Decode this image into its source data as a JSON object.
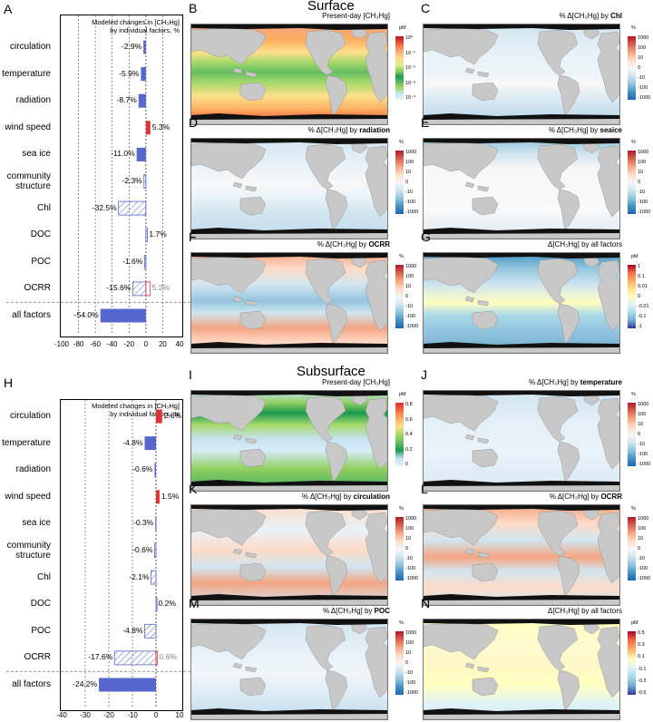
{
  "sections": {
    "surface": "Surface",
    "subsurface": "Subsurface"
  },
  "bar_panels": [
    {
      "letter": "A",
      "title_line1": "Modeled changes in [CH₃Hg]",
      "title_line2": "by individual factors, %",
      "xlim": [
        -100,
        40
      ],
      "xticks": [
        "-100",
        "-80",
        "-60",
        "-40",
        "-20",
        "0",
        "20",
        "40"
      ],
      "xtick_values": [
        -100,
        -80,
        -60,
        -40,
        -20,
        0,
        20,
        40
      ],
      "factors": [
        {
          "label1": "circulation",
          "label2": "",
          "value": -2.9,
          "value_label": "-2.9%",
          "style": "solid"
        },
        {
          "label1": "temperature",
          "label2": "",
          "value": -5.9,
          "value_label": "-5.9%",
          "style": "solid"
        },
        {
          "label1": "radiation",
          "label2": "",
          "value": -8.7,
          "value_label": "-8.7%",
          "style": "solid"
        },
        {
          "label1": "wind speed",
          "label2": "",
          "value": 5.3,
          "value_label": "5.3%",
          "style": "solid"
        },
        {
          "label1": "sea ice",
          "label2": "",
          "value": -11.0,
          "value_label": "-11.0%",
          "style": "solid"
        },
        {
          "label1": "community",
          "label2": "structure",
          "value": -2.3,
          "value_label": "-2.3%",
          "style": "hatched"
        },
        {
          "label1": "Chl",
          "label2": "",
          "value": -32.5,
          "value_label": "-32.5%",
          "style": "hatched"
        },
        {
          "label1": "DOC",
          "label2": "",
          "value": 1.7,
          "value_label": "1.7%",
          "style": "hatched"
        },
        {
          "label1": "POC",
          "label2": "",
          "value": -1.6,
          "value_label": "-1.6%",
          "style": "hatched"
        },
        {
          "label1": "OCRR",
          "label2": "",
          "value": -15.6,
          "value_label": "-15.6%",
          "style": "hatched",
          "value2": 5.2,
          "value2_label": "5.2%"
        },
        {
          "label1": "all factors",
          "label2": "",
          "value": -54.0,
          "value_label": "-54.0%",
          "style": "solid"
        }
      ]
    },
    {
      "letter": "H",
      "title_line1": "Modeled changes in [CH₃Hg]",
      "title_line2": "by individual factors, %",
      "xlim": [
        -40,
        10
      ],
      "xticks": [
        "-40",
        "-30",
        "-20",
        "-10",
        "0",
        "10"
      ],
      "xtick_values": [
        -40,
        -30,
        -20,
        -10,
        0,
        10
      ],
      "factors": [
        {
          "label1": "circulation",
          "label2": "",
          "value": 2.6,
          "value_label": "2.6%",
          "style": "solid"
        },
        {
          "label1": "temperature",
          "label2": "",
          "value": -4.8,
          "value_label": "-4.8%",
          "style": "solid"
        },
        {
          "label1": "radiation",
          "label2": "",
          "value": -0.6,
          "value_label": "-0.6%",
          "style": "solid"
        },
        {
          "label1": "wind speed",
          "label2": "",
          "value": 1.5,
          "value_label": "1.5%",
          "style": "solid"
        },
        {
          "label1": "sea ice",
          "label2": "",
          "value": -0.3,
          "value_label": "-0.3%",
          "style": "solid"
        },
        {
          "label1": "community",
          "label2": "structure",
          "value": -0.6,
          "value_label": "-0.6%",
          "style": "hatched"
        },
        {
          "label1": "Chl",
          "label2": "",
          "value": -2.1,
          "value_label": "-2.1%",
          "style": "hatched"
        },
        {
          "label1": "DOC",
          "label2": "",
          "value": 0.2,
          "value_label": "0.2%",
          "style": "hatched"
        },
        {
          "label1": "POC",
          "label2": "",
          "value": -4.8,
          "value_label": "-4.8%",
          "style": "hatched"
        },
        {
          "label1": "OCRR",
          "label2": "",
          "value": -17.6,
          "value_label": "-17.6%",
          "style": "hatched",
          "value2": 0.6,
          "value2_label": "0.6%"
        },
        {
          "label1": "all factors",
          "label2": "",
          "value": -24.2,
          "value_label": "-24.2%",
          "style": "solid"
        }
      ]
    }
  ],
  "map_panels": [
    {
      "id": "B",
      "letter": "B",
      "title_pre": "Present-day [CH₃Hg]",
      "title_bold": "",
      "unit": "pM",
      "scale": "pm-log",
      "ticks": [
        "10⁰",
        "10⁻¹",
        "10⁻²",
        "10⁻³",
        "10⁻⁴"
      ]
    },
    {
      "id": "C",
      "letter": "C",
      "title_pre": "% Δ[CH₃Hg] by ",
      "title_bold": "Chl",
      "unit": "%",
      "scale": "pct",
      "ticks": [
        "1000",
        "100",
        "10",
        "0",
        "-10",
        "-100",
        "-1000"
      ]
    },
    {
      "id": "D",
      "letter": "D",
      "title_pre": "% Δ[CH₃Hg] by ",
      "title_bold": "radiation",
      "unit": "%",
      "scale": "pct",
      "ticks": [
        "1000",
        "100",
        "10",
        "0",
        "-10",
        "-100",
        "-1000"
      ]
    },
    {
      "id": "E",
      "letter": "E",
      "title_pre": "% Δ[CH₃Hg] by ",
      "title_bold": "seaice",
      "unit": "%",
      "scale": "pct",
      "ticks": [
        "1000",
        "100",
        "10",
        "0",
        "-10",
        "-100",
        "-1000"
      ]
    },
    {
      "id": "F",
      "letter": "F",
      "title_pre": "% Δ[CH₃Hg] by ",
      "title_bold": "OCRR",
      "unit": "%",
      "scale": "pct",
      "ticks": [
        "1000",
        "100",
        "10",
        "0",
        "-10",
        "-100",
        "-1000"
      ]
    },
    {
      "id": "G",
      "letter": "G",
      "title_pre": "Δ[CH₃Hg] by all factors",
      "title_bold": "",
      "unit": "pM",
      "scale": "pm-diff",
      "ticks": [
        "1",
        "0.1",
        "0.01",
        "0",
        "-0.01",
        "-0.1",
        "-1"
      ]
    },
    {
      "id": "I",
      "letter": "I",
      "title_pre": "Present-day [CH₃Hg]",
      "title_bold": "",
      "unit": "pM",
      "scale": "pm-lin",
      "ticks": [
        "0.8",
        "0.6",
        "0.4",
        "0.2",
        "0"
      ]
    },
    {
      "id": "J",
      "letter": "J",
      "title_pre": "% Δ[CH₃Hg] by ",
      "title_bold": "temperature",
      "unit": "%",
      "scale": "pct",
      "ticks": [
        "1000",
        "100",
        "10",
        "0",
        "-10",
        "-100",
        "-1000"
      ]
    },
    {
      "id": "K",
      "letter": "K",
      "title_pre": "% Δ[CH₃Hg] by ",
      "title_bold": "circulation",
      "unit": "%",
      "scale": "pct",
      "ticks": [
        "1000",
        "100",
        "10",
        "0",
        "-10",
        "-100",
        "-1000"
      ]
    },
    {
      "id": "L",
      "letter": "L",
      "title_pre": "% Δ[CH₃Hg] by ",
      "title_bold": "OCRR",
      "unit": "%",
      "scale": "pct",
      "ticks": [
        "1000",
        "100",
        "10",
        "0",
        "-10",
        "-100",
        "-1000"
      ]
    },
    {
      "id": "M",
      "letter": "M",
      "title_pre": "% Δ[CH₃Hg] by ",
      "title_bold": "POC",
      "unit": "%",
      "scale": "pct",
      "ticks": [
        "1000",
        "100",
        "10",
        "0",
        "-10",
        "-100",
        "-1000"
      ]
    },
    {
      "id": "N",
      "letter": "N",
      "title_pre": "Δ[CH₃Hg] by all factors",
      "title_bold": "",
      "unit": "pM",
      "scale": "pm-diff2",
      "ticks": [
        "0.5",
        "0.3",
        "0.1",
        "-0.1",
        "-0.3",
        "-0.5"
      ]
    }
  ],
  "colors": {
    "negative_bar": "#5566cc",
    "positive_bar": "#dd3333",
    "hatch": "#5566cc",
    "land": "#c8c8c8"
  }
}
